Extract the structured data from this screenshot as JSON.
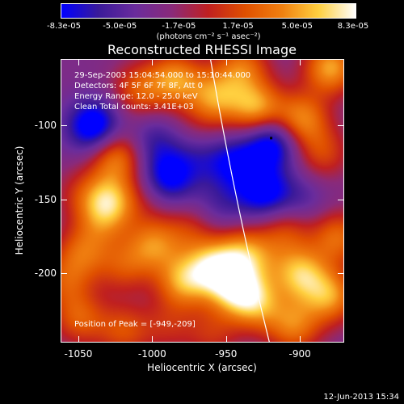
{
  "colorbar": {
    "ticks": [
      "-8.3e-05",
      "-5.0e-05",
      "-1.7e-05",
      "1.7e-05",
      "5.0e-05",
      "8.3e-05"
    ],
    "unit": "(photons cm⁻² s⁻¹ asec⁻²)",
    "colors": [
      "#0000ff",
      "#3a1a9a",
      "#6a2c9c",
      "#8a2a7a",
      "#c02020",
      "#e05000",
      "#f08010",
      "#ffd040",
      "#ffffff"
    ]
  },
  "chart_data": {
    "type": "heatmap",
    "title": "Reconstructed RHESSI Image",
    "xlabel": "Heliocentric X (arcsec)",
    "ylabel": "Heliocentric Y (arcsec)",
    "xlim": [
      -1062,
      -870
    ],
    "ylim": [
      -247,
      -55
    ],
    "xticks": [
      -1050,
      -1000,
      -950,
      -900
    ],
    "yticks": [
      -100,
      -150,
      -200
    ],
    "zlim": [
      -8.3e-05,
      8.3e-05
    ],
    "info": [
      "29-Sep-2003 15:04:54.000 to 15:10:44.000",
      "Detectors: 4F 5F 6F 7F 8F, Att 0",
      "Energy Range: 12.0 - 25.0 keV",
      "Clean    Total counts: 3.41E+03"
    ],
    "peak_label": "Position of Peak = [-949,-209]",
    "blobs": [
      {
        "x": -1040,
        "y": -100,
        "v": -0.9
      },
      {
        "x": -1050,
        "y": -145,
        "v": 0.3
      },
      {
        "x": -1010,
        "y": -75,
        "v": 0.6
      },
      {
        "x": -985,
        "y": -68,
        "v": 0.85
      },
      {
        "x": -1025,
        "y": -120,
        "v": 0.8
      },
      {
        "x": -1000,
        "y": -110,
        "v": -0.4
      },
      {
        "x": -990,
        "y": -135,
        "v": -0.7
      },
      {
        "x": -1030,
        "y": -150,
        "v": 0.9
      },
      {
        "x": -1005,
        "y": -150,
        "v": 0.2
      },
      {
        "x": -970,
        "y": -100,
        "v": 0.2
      },
      {
        "x": -970,
        "y": -120,
        "v": -0.3
      },
      {
        "x": -958,
        "y": -80,
        "v": 0.8
      },
      {
        "x": -940,
        "y": -60,
        "v": 0.7
      },
      {
        "x": -930,
        "y": -88,
        "v": 0.95
      },
      {
        "x": -945,
        "y": -125,
        "v": -0.6
      },
      {
        "x": -925,
        "y": -145,
        "v": -0.7
      },
      {
        "x": -920,
        "y": -110,
        "v": -0.85
      },
      {
        "x": -900,
        "y": -95,
        "v": 0.85
      },
      {
        "x": -880,
        "y": -60,
        "v": 0.95
      },
      {
        "x": -885,
        "y": -118,
        "v": 0.5
      },
      {
        "x": -875,
        "y": -175,
        "v": 0.7
      },
      {
        "x": -900,
        "y": -150,
        "v": -0.3
      },
      {
        "x": -975,
        "y": -170,
        "v": 0.4
      },
      {
        "x": -955,
        "y": -155,
        "v": -0.3
      },
      {
        "x": -1048,
        "y": -185,
        "v": 0.6
      },
      {
        "x": -1000,
        "y": -180,
        "v": 0.75
      },
      {
        "x": -1020,
        "y": -195,
        "v": 0.5
      },
      {
        "x": -980,
        "y": -205,
        "v": 0.85
      },
      {
        "x": -960,
        "y": -195,
        "v": 0.9
      },
      {
        "x": -940,
        "y": -185,
        "v": 0.7
      },
      {
        "x": -945,
        "y": -209,
        "v": 1.0
      },
      {
        "x": -930,
        "y": -220,
        "v": 0.8
      },
      {
        "x": -900,
        "y": -200,
        "v": 0.95
      },
      {
        "x": -880,
        "y": -215,
        "v": 0.85
      },
      {
        "x": -905,
        "y": -235,
        "v": 0.75
      },
      {
        "x": -1050,
        "y": -230,
        "v": 0.6
      },
      {
        "x": -1020,
        "y": -238,
        "v": 0.55
      },
      {
        "x": -990,
        "y": -235,
        "v": 0.35
      },
      {
        "x": -960,
        "y": -240,
        "v": 0.4
      },
      {
        "x": -1060,
        "y": -205,
        "v": 0.5
      },
      {
        "x": -1035,
        "y": -165,
        "v": 0.4
      },
      {
        "x": -910,
        "y": -170,
        "v": 0.5
      },
      {
        "x": -925,
        "y": -190,
        "v": 0.3
      }
    ],
    "limb": [
      [
        -961,
        -55
      ],
      [
        -945,
        -150
      ],
      [
        -921,
        -247
      ]
    ]
  },
  "timestamp": "12-Jun-2013 15:34"
}
